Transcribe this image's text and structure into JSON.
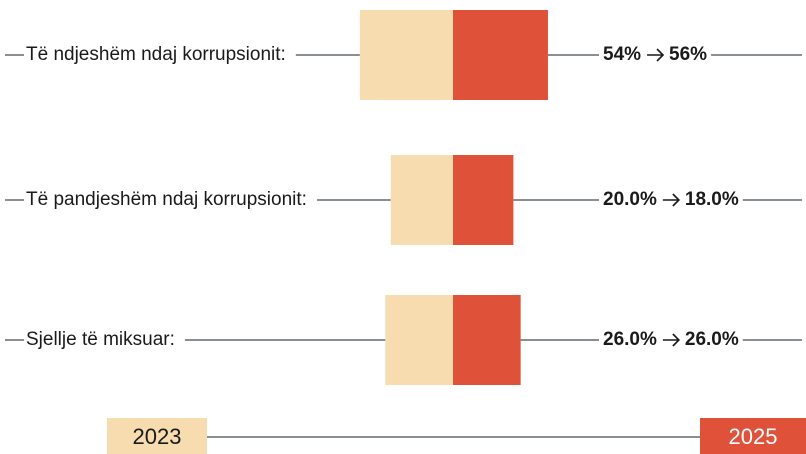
{
  "chart_data": {
    "type": "bar",
    "categories": [
      "Të ndjeshëm ndaj korrupsionit:",
      "Të pandjeshëm ndaj korrupsionit:",
      "Sjellje të miksuar:"
    ],
    "series": [
      {
        "name": "2023",
        "color": "#f7dcb0",
        "values": [
          54,
          20,
          26
        ],
        "value_labels": [
          "54%",
          "20.0%",
          "26.0%"
        ]
      },
      {
        "name": "2025",
        "color": "#e0513a",
        "values": [
          56,
          18,
          26
        ],
        "value_labels": [
          "56%",
          "18.0%",
          "26.0%"
        ]
      }
    ]
  }
}
